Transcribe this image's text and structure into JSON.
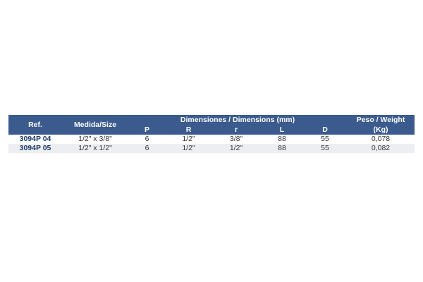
{
  "table": {
    "header": {
      "ref": "Ref.",
      "size": "Medida/Size",
      "dimensions": "Dimensiones / Dimensions (mm)",
      "columns": [
        "P",
        "R",
        "r",
        "L",
        "D"
      ],
      "weight": "Peso / Weight",
      "weight_unit": "(Kg)"
    },
    "rows": [
      [
        "3094P 04",
        "1/2\" x 3/8\"",
        "6",
        "1/2\"",
        "3/8\"",
        "88",
        "55",
        "0,078"
      ],
      [
        "3094P 05",
        "1/2\" x 1/2\"",
        "6",
        "1/2\"",
        "1/2\"",
        "88",
        "55",
        "0,082"
      ]
    ]
  }
}
